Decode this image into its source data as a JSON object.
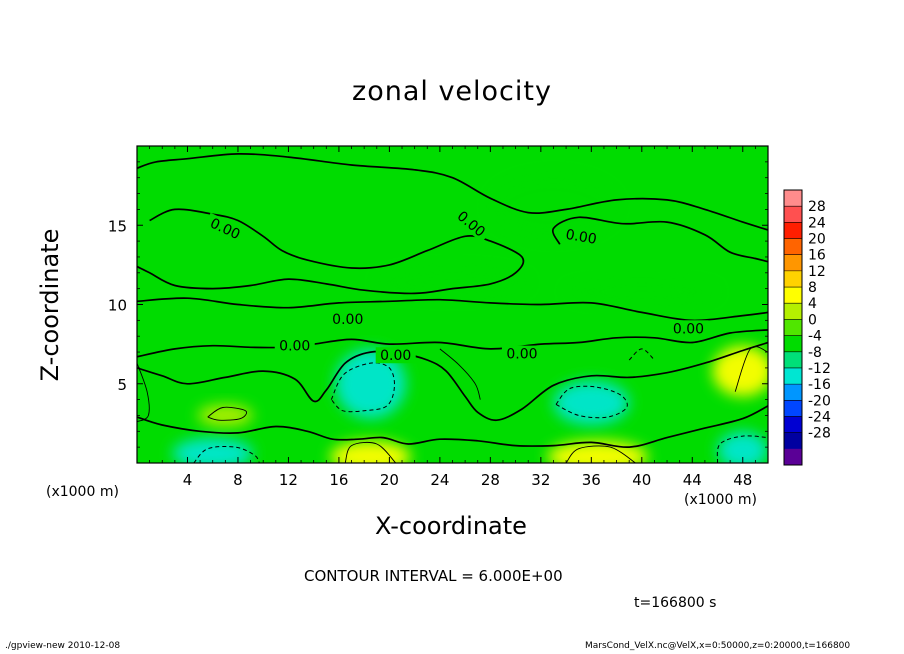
{
  "footer": {
    "left": "./gpview-new   2010-12-08",
    "right": "MarsCond_VelX.nc@VelX,x=0:50000,z=0:20000,t=166800"
  },
  "chart_data": {
    "type": "heatmap",
    "title": "zonal velocity",
    "xlabel": "X-coordinate",
    "ylabel": "Z-coordinate",
    "x_unit_label": "(x1000 m)",
    "xlim": [
      0,
      50
    ],
    "ylim": [
      0,
      20
    ],
    "x_ticks": [
      4,
      8,
      12,
      16,
      20,
      24,
      28,
      32,
      36,
      40,
      44,
      48
    ],
    "y_ticks": [
      5,
      10,
      15
    ],
    "contour_interval_text": "CONTOUR INTERVAL = 6.000E+00",
    "time_text": "t=166800 s",
    "contour_labels": [
      {
        "text": "0.00",
        "x": 7.0,
        "y": 14.8,
        "angle": 25
      },
      {
        "text": "0.00",
        "x": 26.5,
        "y": 15.1,
        "angle": 40
      },
      {
        "text": "0.00",
        "x": 35.2,
        "y": 14.3,
        "angle": 10
      },
      {
        "text": "0.00",
        "x": 16.7,
        "y": 9.1,
        "angle": 0
      },
      {
        "text": "0.00",
        "x": 43.7,
        "y": 8.5,
        "angle": 0
      },
      {
        "text": "0.00",
        "x": 12.5,
        "y": 7.4,
        "angle": 0
      },
      {
        "text": "0.00",
        "x": 20.5,
        "y": 6.8,
        "angle": 0
      },
      {
        "text": "0.00",
        "x": 30.5,
        "y": 6.9,
        "angle": 0
      }
    ],
    "colorbar": {
      "labels": [
        "28",
        "24",
        "20",
        "16",
        "12",
        "8",
        "4",
        "0",
        "-4",
        "-8",
        "-12",
        "-16",
        "-20",
        "-24",
        "-28"
      ],
      "colors": [
        "#ff8c8c",
        "#ff5050",
        "#ff1e00",
        "#ff6400",
        "#ff9600",
        "#ffd200",
        "#ffff00",
        "#b4f000",
        "#50e600",
        "#00dc00",
        "#00e078",
        "#00e6d2",
        "#0096ff",
        "#0046ff",
        "#0000d2",
        "#0000a0",
        "#5a0096"
      ]
    },
    "field_color": "#00dc00",
    "anomalies": [
      {
        "x": 18.5,
        "y": 5.0,
        "rx": 2.8,
        "ry": 2.2,
        "value": -9
      },
      {
        "x": 36.0,
        "y": 3.8,
        "rx": 3.0,
        "ry": 1.4,
        "value": -10
      },
      {
        "x": 6.0,
        "y": 0.6,
        "rx": 3.2,
        "ry": 1.0,
        "value": -10
      },
      {
        "x": 48.0,
        "y": 0.8,
        "rx": 2.0,
        "ry": 1.2,
        "value": -9
      },
      {
        "x": 18.5,
        "y": 0.4,
        "rx": 3.2,
        "ry": 1.0,
        "value": 10
      },
      {
        "x": 36.5,
        "y": 0.4,
        "rx": 4.0,
        "ry": 1.0,
        "value": 10
      },
      {
        "x": 48.0,
        "y": 5.8,
        "rx": 2.4,
        "ry": 1.6,
        "value": 8
      },
      {
        "x": 7.0,
        "y": 3.0,
        "rx": 2.2,
        "ry": 0.7,
        "value": 5
      },
      {
        "x": 25.0,
        "y": 11.4,
        "rx": 6.0,
        "ry": 0.9,
        "value": -3
      },
      {
        "x": 40.0,
        "y": 10.8,
        "rx": 6.0,
        "ry": 0.7,
        "value": -3
      },
      {
        "x": 33.0,
        "y": 16.2,
        "rx": 5.0,
        "ry": 2.0,
        "value": -3
      }
    ],
    "contours": [
      {
        "style": "solid",
        "points": [
          [
            0,
            18.6
          ],
          [
            1.5,
            19.0
          ],
          [
            4,
            19.2
          ],
          [
            8,
            19.5
          ],
          [
            12,
            19.3
          ],
          [
            17,
            18.8
          ],
          [
            22,
            18.5
          ],
          [
            25,
            18.0
          ],
          [
            28,
            16.7
          ],
          [
            31,
            15.8
          ],
          [
            34,
            16.0
          ],
          [
            38,
            16.6
          ],
          [
            42,
            16.6
          ],
          [
            45,
            16.0
          ],
          [
            48,
            15.2
          ],
          [
            50,
            14.7
          ]
        ]
      },
      {
        "style": "solid",
        "points": [
          [
            1,
            15.3
          ],
          [
            3,
            16.0
          ],
          [
            6,
            15.7
          ],
          [
            8,
            15.3
          ],
          [
            10,
            14.3
          ],
          [
            11.5,
            13.4
          ],
          [
            13.5,
            12.8
          ],
          [
            17,
            12.3
          ],
          [
            20,
            12.5
          ],
          [
            23,
            13.4
          ],
          [
            26,
            14.3
          ],
          [
            28,
            14.0
          ],
          [
            30.5,
            13.0
          ],
          [
            30,
            12.0
          ],
          [
            28,
            11.3
          ],
          [
            25,
            11.0
          ],
          [
            22,
            10.7
          ],
          [
            18,
            10.9
          ],
          [
            15,
            11.3
          ],
          [
            12,
            11.6
          ],
          [
            9,
            11.2
          ],
          [
            6,
            11.0
          ],
          [
            3,
            11.2
          ],
          [
            1,
            12.0
          ],
          [
            0,
            12.4
          ]
        ]
      },
      {
        "style": "solid",
        "points": [
          [
            33.5,
            13.8
          ],
          [
            33.0,
            14.8
          ],
          [
            35.0,
            15.5
          ],
          [
            38.5,
            15.1
          ],
          [
            42,
            15.2
          ],
          [
            45,
            14.4
          ],
          [
            47,
            13.3
          ],
          [
            49,
            12.9
          ],
          [
            50,
            12.7
          ]
        ]
      },
      {
        "style": "solid",
        "points": [
          [
            0,
            10.2
          ],
          [
            4,
            10.4
          ],
          [
            8,
            10.0
          ],
          [
            12,
            9.8
          ],
          [
            16,
            10.1
          ],
          [
            20,
            10.2
          ],
          [
            24,
            10.3
          ],
          [
            28,
            10.1
          ],
          [
            32,
            10.0
          ],
          [
            36,
            10.1
          ],
          [
            40,
            9.5
          ],
          [
            44,
            9.0
          ],
          [
            48,
            9.3
          ],
          [
            50,
            9.5
          ]
        ]
      },
      {
        "style": "solid",
        "points": [
          [
            0,
            6.7
          ],
          [
            3,
            7.2
          ],
          [
            6,
            7.4
          ],
          [
            9,
            7.3
          ],
          [
            11.5,
            7.3
          ],
          [
            14,
            7.5
          ],
          [
            17,
            7.8
          ],
          [
            20,
            7.5
          ],
          [
            24,
            7.6
          ],
          [
            28,
            7.2
          ],
          [
            32,
            7.5
          ],
          [
            35,
            7.6
          ],
          [
            38,
            7.9
          ],
          [
            41,
            7.9
          ],
          [
            44,
            7.6
          ],
          [
            47,
            8.2
          ],
          [
            50,
            8.4
          ]
        ]
      },
      {
        "style": "solid",
        "points": [
          [
            0,
            6.0
          ],
          [
            2,
            5.5
          ],
          [
            4,
            5.0
          ],
          [
            7,
            5.4
          ],
          [
            10,
            5.8
          ],
          [
            12.5,
            5.3
          ],
          [
            14,
            3.9
          ],
          [
            15,
            4.6
          ],
          [
            16.5,
            6.3
          ],
          [
            18.5,
            7.0
          ],
          [
            21,
            6.9
          ],
          [
            23,
            6.5
          ],
          [
            24.5,
            5.8
          ],
          [
            26,
            4.2
          ],
          [
            27,
            3.2
          ],
          [
            28.5,
            2.7
          ],
          [
            30.5,
            3.4
          ],
          [
            33,
            4.9
          ],
          [
            36,
            5.5
          ],
          [
            39,
            5.4
          ],
          [
            42,
            5.7
          ],
          [
            45,
            6.3
          ],
          [
            48,
            7.1
          ],
          [
            50,
            7.6
          ]
        ]
      },
      {
        "style": "solid",
        "points": [
          [
            0,
            2.9
          ],
          [
            2,
            2.4
          ],
          [
            5,
            2.0
          ],
          [
            8,
            1.9
          ],
          [
            11,
            2.3
          ],
          [
            13.5,
            2.0
          ],
          [
            15.5,
            1.5
          ],
          [
            17.5,
            1.5
          ],
          [
            19.5,
            1.6
          ],
          [
            21.5,
            1.2
          ],
          [
            24,
            1.5
          ],
          [
            27,
            1.4
          ],
          [
            30,
            1.1
          ],
          [
            33,
            1.1
          ],
          [
            36,
            1.3
          ],
          [
            39,
            1.0
          ],
          [
            42,
            1.6
          ],
          [
            45,
            2.2
          ],
          [
            48,
            2.8
          ],
          [
            50,
            3.6
          ]
        ]
      },
      {
        "style": "dashed",
        "points": [
          [
            15.4,
            4.0
          ],
          [
            16.4,
            5.6
          ],
          [
            18.5,
            6.3
          ],
          [
            20.0,
            6.0
          ],
          [
            20.4,
            4.8
          ],
          [
            19.8,
            3.6
          ],
          [
            18.0,
            3.3
          ],
          [
            16.3,
            3.3
          ],
          [
            15.4,
            4.0
          ]
        ]
      },
      {
        "style": "dashed",
        "points": [
          [
            33.2,
            3.7
          ],
          [
            34.3,
            4.7
          ],
          [
            36.3,
            4.8
          ],
          [
            38.3,
            4.3
          ],
          [
            38.8,
            3.5
          ],
          [
            37.3,
            2.9
          ],
          [
            35.0,
            3.0
          ],
          [
            33.2,
            3.7
          ]
        ]
      },
      {
        "style": "dashed",
        "points": [
          [
            4.5,
            0
          ],
          [
            5.6,
            0.9
          ],
          [
            7.8,
            1.0
          ],
          [
            9.3,
            0.5
          ],
          [
            9.7,
            0
          ]
        ]
      },
      {
        "style": "dashed",
        "points": [
          [
            46.0,
            0
          ],
          [
            46.2,
            1.2
          ],
          [
            48.0,
            1.7
          ],
          [
            50,
            1.6
          ]
        ]
      },
      {
        "style": "dashed",
        "points": [
          [
            39.0,
            6.5
          ],
          [
            40.0,
            7.2
          ],
          [
            41.0,
            6.5
          ]
        ]
      },
      {
        "style": "thin",
        "points": [
          [
            5.6,
            2.9
          ],
          [
            6.8,
            3.5
          ],
          [
            8.6,
            3.3
          ],
          [
            8.2,
            2.8
          ],
          [
            6.5,
            2.7
          ],
          [
            5.6,
            2.9
          ]
        ]
      },
      {
        "style": "thin",
        "points": [
          [
            0,
            6.3
          ],
          [
            0.8,
            4.5
          ],
          [
            0.9,
            3.0
          ],
          [
            0,
            2.6
          ]
        ]
      },
      {
        "style": "thin",
        "points": [
          [
            47.4,
            4.5
          ],
          [
            48.6,
            7.2
          ],
          [
            50,
            7.0
          ]
        ]
      },
      {
        "style": "thin",
        "points": [
          [
            16.5,
            0
          ],
          [
            17.0,
            1.1
          ],
          [
            19.0,
            1.2
          ],
          [
            20.5,
            0
          ]
        ]
      },
      {
        "style": "thin",
        "points": [
          [
            34.0,
            0
          ],
          [
            35.0,
            0.9
          ],
          [
            37.5,
            1.0
          ],
          [
            39.5,
            0
          ]
        ]
      },
      {
        "style": "thin",
        "points": [
          [
            24.0,
            7.2
          ],
          [
            25.5,
            6.2
          ],
          [
            26.8,
            5.0
          ],
          [
            27.2,
            4.0
          ]
        ]
      }
    ]
  }
}
